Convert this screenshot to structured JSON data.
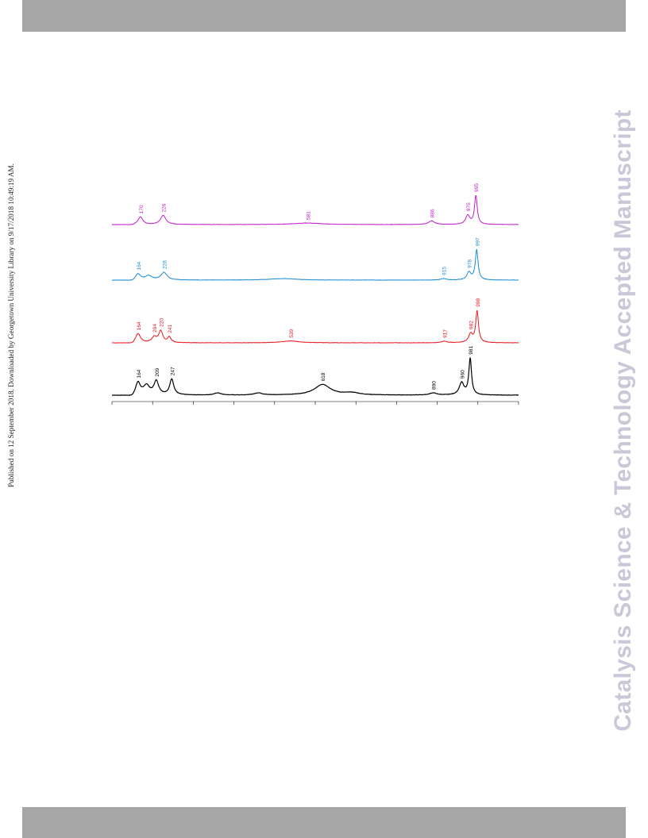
{
  "header": {
    "published_line": "Published on 12 September 2018. Downloaded by Georgetown University Library on 9/17/2018 10:49:19 AM."
  },
  "watermark": {
    "text": "Catalysis Science & Technology Accepted Manuscript",
    "color": "#c8c8d8"
  },
  "colors": {
    "bars": "#a6a6a6"
  },
  "chart_data": {
    "type": "line",
    "orientation": "rotated-90",
    "xlim": [
      100,
      1100
    ],
    "tick_step": 100,
    "series": [
      {
        "color": "#000000",
        "baseline": 0,
        "peaks": [
          {
            "x": 164,
            "h": 0.4,
            "w": 7,
            "label": "164"
          },
          {
            "x": 185,
            "h": 0.3,
            "w": 9
          },
          {
            "x": 209,
            "h": 0.45,
            "w": 7,
            "label": "209"
          },
          {
            "x": 247,
            "h": 0.52,
            "w": 6,
            "label": "247"
          },
          {
            "x": 360,
            "h": 0.07,
            "w": 10
          },
          {
            "x": 460,
            "h": 0.07,
            "w": 12
          },
          {
            "x": 618,
            "h": 0.35,
            "w": 24,
            "label": "618"
          },
          {
            "x": 690,
            "h": 0.07,
            "w": 22
          },
          {
            "x": 890,
            "h": 0.07,
            "w": 10,
            "label": "890"
          },
          {
            "x": 960,
            "h": 0.4,
            "w": 7,
            "label": "960"
          },
          {
            "x": 981,
            "h": 1.2,
            "w": 4,
            "label": "981"
          }
        ],
        "labels": [
          "164",
          "209",
          "247",
          "618",
          "890",
          "960",
          "981"
        ]
      },
      {
        "color": "#e8151c",
        "baseline": 1,
        "peaks": [
          {
            "x": 164,
            "h": 0.3,
            "w": 7,
            "label": "164"
          },
          {
            "x": 204,
            "h": 0.18,
            "w": 7,
            "label": "204"
          },
          {
            "x": 220,
            "h": 0.38,
            "w": 6,
            "label": "220"
          },
          {
            "x": 241,
            "h": 0.18,
            "w": 5,
            "label": "241"
          },
          {
            "x": 539,
            "h": 0.06,
            "w": 26,
            "label": "539"
          },
          {
            "x": 917,
            "h": 0.05,
            "w": 8,
            "label": "917"
          },
          {
            "x": 982,
            "h": 0.28,
            "w": 6,
            "label": "982"
          },
          {
            "x": 998,
            "h": 1.05,
            "w": 4,
            "label": "998"
          }
        ],
        "labels": [
          "164",
          "204",
          "220",
          "241",
          "539",
          "917",
          "982",
          "998"
        ]
      },
      {
        "color": "#1b8ad3",
        "baseline": 2,
        "peaks": [
          {
            "x": 164,
            "h": 0.2,
            "w": 7,
            "label": "164"
          },
          {
            "x": 190,
            "h": 0.14,
            "w": 10
          },
          {
            "x": 228,
            "h": 0.25,
            "w": 9,
            "label": "228"
          },
          {
            "x": 520,
            "h": 0.05,
            "w": 40
          },
          {
            "x": 915,
            "h": 0.05,
            "w": 8,
            "label": "915"
          },
          {
            "x": 978,
            "h": 0.25,
            "w": 6,
            "label": "978"
          },
          {
            "x": 997,
            "h": 1.0,
            "w": 4,
            "label": "997"
          }
        ],
        "labels": [
          "164",
          "228",
          "915",
          "978",
          "997"
        ]
      },
      {
        "color": "#c41cc8",
        "baseline": 3,
        "peaks": [
          {
            "x": 170,
            "h": 0.25,
            "w": 7,
            "label": "170"
          },
          {
            "x": 226,
            "h": 0.3,
            "w": 8,
            "label": "226"
          },
          {
            "x": 581,
            "h": 0.05,
            "w": 40,
            "label": "581"
          },
          {
            "x": 886,
            "h": 0.12,
            "w": 9,
            "label": "886"
          },
          {
            "x": 975,
            "h": 0.3,
            "w": 6,
            "label": "975"
          },
          {
            "x": 995,
            "h": 0.95,
            "w": 4,
            "label": "995"
          }
        ],
        "labels": [
          "170",
          "226",
          "581",
          "886",
          "975",
          "995"
        ]
      }
    ]
  }
}
